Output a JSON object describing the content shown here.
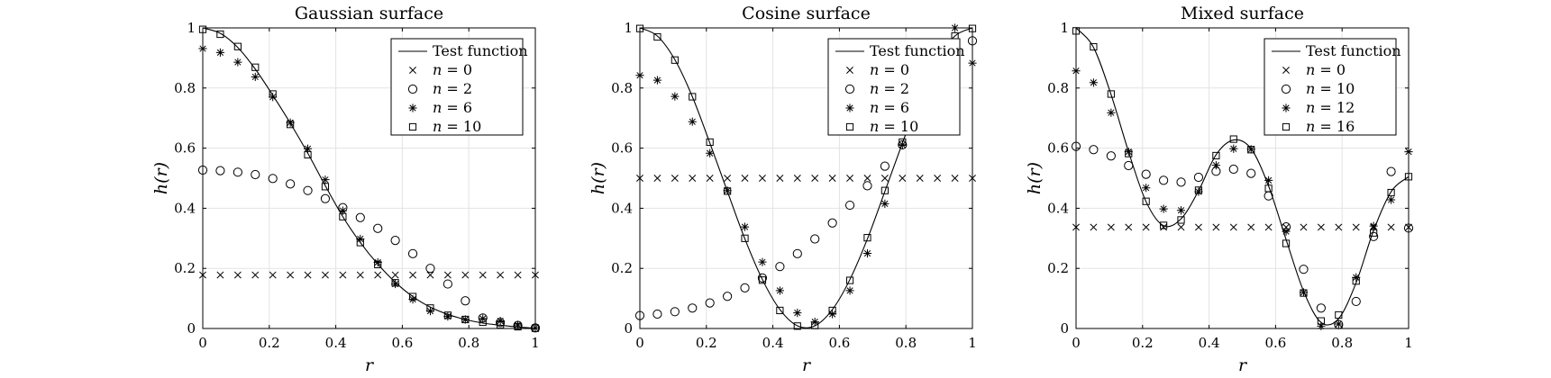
{
  "chart_data": [
    {
      "type": "line",
      "title": "Gaussian surface",
      "xlabel": "r",
      "ylabel": "h(r)",
      "xlim": [
        0,
        1
      ],
      "ylim": [
        0,
        1
      ],
      "xticks": [
        "0",
        "0.2",
        "0.4",
        "0.6",
        "0.8",
        "1"
      ],
      "yticks": [
        "0",
        "0.2",
        "0.4",
        "0.6",
        "0.8",
        "1"
      ],
      "grid": true,
      "legend_position": "top-right",
      "x": [
        0,
        0.0526,
        0.1053,
        0.1579,
        0.2105,
        0.2632,
        0.3158,
        0.3684,
        0.4211,
        0.4737,
        0.5263,
        0.5789,
        0.6316,
        0.6842,
        0.7368,
        0.7895,
        0.8421,
        0.8947,
        0.9474,
        1.0
      ],
      "series": [
        {
          "name": "Test function",
          "marker": "line",
          "y": [
            1.0,
            0.982,
            0.935,
            0.863,
            0.776,
            0.683,
            0.583,
            0.475,
            0.372,
            0.286,
            0.214,
            0.154,
            0.106,
            0.071,
            0.047,
            0.03,
            0.018,
            0.011,
            0.005,
            0.001
          ]
        },
        {
          "name": "n = 0",
          "marker": "x",
          "y": [
            0.178,
            0.178,
            0.178,
            0.178,
            0.178,
            0.178,
            0.178,
            0.178,
            0.178,
            0.178,
            0.178,
            0.178,
            0.178,
            0.178,
            0.178,
            0.178,
            0.178,
            0.178,
            0.178,
            0.178
          ]
        },
        {
          "name": "n = 2",
          "marker": "o",
          "y": [
            0.527,
            0.525,
            0.52,
            0.512,
            0.499,
            0.481,
            0.459,
            0.432,
            0.402,
            0.369,
            0.333,
            0.293,
            0.249,
            0.2,
            0.148,
            0.092,
            0.035,
            0.02,
            0.01,
            0.002
          ]
        },
        {
          "name": "n = 6",
          "marker": "*",
          "y": [
            0.931,
            0.918,
            0.886,
            0.837,
            0.77,
            0.685,
            0.598,
            0.495,
            0.392,
            0.298,
            0.22,
            0.148,
            0.097,
            0.058,
            0.04,
            0.03,
            0.033,
            0.025,
            0.012,
            0.002
          ]
        },
        {
          "name": "n = 10",
          "marker": "square",
          "y": [
            0.995,
            0.979,
            0.938,
            0.869,
            0.78,
            0.679,
            0.578,
            0.472,
            0.372,
            0.286,
            0.213,
            0.152,
            0.106,
            0.068,
            0.044,
            0.03,
            0.021,
            0.012,
            0.006,
            0.001
          ]
        }
      ]
    },
    {
      "type": "line",
      "title": "Cosine surface",
      "xlabel": "r",
      "ylabel": "h(r)",
      "xlim": [
        0,
        1
      ],
      "ylim": [
        0,
        1
      ],
      "xticks": [
        "0",
        "0.2",
        "0.4",
        "0.6",
        "0.8",
        "1"
      ],
      "yticks": [
        "0",
        "0.2",
        "0.4",
        "0.6",
        "0.8",
        "1"
      ],
      "grid": true,
      "legend_position": "top-right",
      "x": [
        0,
        0.0526,
        0.1053,
        0.1579,
        0.2105,
        0.2632,
        0.3158,
        0.3684,
        0.4211,
        0.4737,
        0.5263,
        0.5789,
        0.6316,
        0.6842,
        0.7368,
        0.7895,
        0.8421,
        0.8947,
        0.9474,
        1.0
      ],
      "series": [
        {
          "name": "Test function",
          "marker": "line",
          "y": [
            1.0,
            0.973,
            0.894,
            0.771,
            0.617,
            0.456,
            0.298,
            0.163,
            0.063,
            0.009,
            0.009,
            0.063,
            0.163,
            0.298,
            0.456,
            0.617,
            0.771,
            0.894,
            0.973,
            1.0
          ]
        },
        {
          "name": "n = 0",
          "marker": "x",
          "y": [
            0.5,
            0.5,
            0.5,
            0.5,
            0.5,
            0.5,
            0.5,
            0.5,
            0.5,
            0.5,
            0.5,
            0.5,
            0.5,
            0.5,
            0.5,
            0.5,
            0.5,
            0.5,
            0.5,
            0.5
          ]
        },
        {
          "name": "n = 2",
          "marker": "o",
          "y": [
            0.043,
            0.048,
            0.056,
            0.068,
            0.085,
            0.107,
            0.135,
            0.168,
            0.206,
            0.249,
            0.298,
            0.351,
            0.41,
            0.475,
            0.54,
            0.611,
            0.69,
            0.775,
            0.862,
            0.957
          ]
        },
        {
          "name": "n = 6",
          "marker": "*",
          "y": [
            0.842,
            0.826,
            0.772,
            0.688,
            0.583,
            0.459,
            0.338,
            0.221,
            0.126,
            0.052,
            0.022,
            0.048,
            0.126,
            0.25,
            0.415,
            0.611,
            0.8,
            0.945,
            1.0,
            0.883
          ]
        },
        {
          "name": "n = 10",
          "marker": "square",
          "y": [
            0.998,
            0.97,
            0.893,
            0.771,
            0.62,
            0.457,
            0.3,
            0.161,
            0.06,
            0.008,
            0.01,
            0.06,
            0.16,
            0.302,
            0.459,
            0.62,
            0.77,
            0.893,
            0.973,
            0.998
          ]
        }
      ]
    },
    {
      "type": "line",
      "title": "Mixed surface",
      "xlabel": "r",
      "ylabel": "h(r)",
      "xlim": [
        0,
        1
      ],
      "ylim": [
        0,
        1
      ],
      "xticks": [
        "0",
        "0.2",
        "0.4",
        "0.6",
        "0.8",
        "1"
      ],
      "yticks": [
        "0",
        "0.2",
        "0.4",
        "0.6",
        "0.8",
        "1"
      ],
      "grid": true,
      "legend_position": "top-right",
      "x": [
        0,
        0.0526,
        0.1053,
        0.1579,
        0.2105,
        0.2632,
        0.3158,
        0.3684,
        0.4211,
        0.4737,
        0.5263,
        0.5789,
        0.6316,
        0.6842,
        0.7368,
        0.7895,
        0.8421,
        0.8947,
        0.9474,
        1.0
      ],
      "series": [
        {
          "name": "Test function",
          "marker": "line",
          "y": [
            1.0,
            0.935,
            0.778,
            0.588,
            0.422,
            0.342,
            0.365,
            0.458,
            0.578,
            0.627,
            0.598,
            0.474,
            0.296,
            0.124,
            0.02,
            0.033,
            0.152,
            0.326,
            0.455,
            0.505
          ]
        },
        {
          "name": "n = 0",
          "marker": "x",
          "y": [
            0.337,
            0.337,
            0.337,
            0.337,
            0.337,
            0.337,
            0.337,
            0.337,
            0.337,
            0.337,
            0.337,
            0.337,
            0.337,
            0.337,
            0.337,
            0.337,
            0.337,
            0.337,
            0.337,
            0.337
          ]
        },
        {
          "name": "n = 10",
          "marker": "o",
          "y": [
            0.606,
            0.595,
            0.574,
            0.542,
            0.513,
            0.493,
            0.487,
            0.503,
            0.523,
            0.53,
            0.516,
            0.441,
            0.338,
            0.197,
            0.068,
            0.013,
            0.09,
            0.306,
            0.522,
            0.334
          ]
        },
        {
          "name": "n = 12",
          "marker": "*",
          "y": [
            0.857,
            0.818,
            0.718,
            0.588,
            0.468,
            0.398,
            0.393,
            0.455,
            0.543,
            0.598,
            0.596,
            0.493,
            0.323,
            0.12,
            0.008,
            0.015,
            0.17,
            0.341,
            0.428,
            0.588
          ]
        },
        {
          "name": "n = 16",
          "marker": "square",
          "y": [
            0.99,
            0.937,
            0.78,
            0.582,
            0.423,
            0.343,
            0.361,
            0.46,
            0.575,
            0.63,
            0.595,
            0.466,
            0.283,
            0.118,
            0.025,
            0.045,
            0.158,
            0.318,
            0.452,
            0.505
          ]
        }
      ]
    }
  ]
}
